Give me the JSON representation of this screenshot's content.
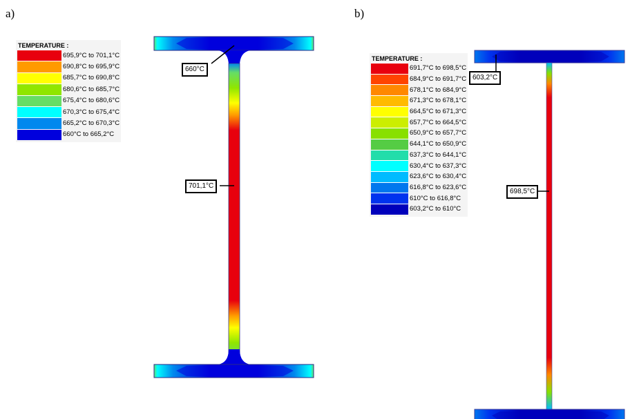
{
  "panels": [
    {
      "label": "a)",
      "legend": {
        "title": "TEMPERATURE :",
        "items": [
          {
            "text": "695,9°C to 701,1°C",
            "color": "#e8000e"
          },
          {
            "text": "690,8°C to 695,9°C",
            "color": "#ff9a00"
          },
          {
            "text": "685,7°C to 690,8°C",
            "color": "#ffff00"
          },
          {
            "text": "680,6°C to 685,7°C",
            "color": "#8fe600"
          },
          {
            "text": "675,4°C to 680,6°C",
            "color": "#66dd66"
          },
          {
            "text": "670,3°C to 675,4°C",
            "color": "#00ffff"
          },
          {
            "text": "665,2°C to 670,3°C",
            "color": "#0088ee"
          },
          {
            "text": "660°C to 665,2°C",
            "color": "#0000dd"
          }
        ]
      },
      "callouts": [
        {
          "text": "660°C"
        },
        {
          "text": "701,1°C"
        }
      ]
    },
    {
      "label": "b)",
      "legend": {
        "title": "TEMPERATURE :",
        "items": [
          {
            "text": "691,7°C to 698,5°C",
            "color": "#e8000e"
          },
          {
            "text": "684,9°C to 691,7°C",
            "color": "#ff4400"
          },
          {
            "text": "678,1°C to 684,9°C",
            "color": "#ff8800"
          },
          {
            "text": "671,3°C to 678,1°C",
            "color": "#ffbb00"
          },
          {
            "text": "664,5°C to 671,3°C",
            "color": "#ffff00"
          },
          {
            "text": "657,7°C to 664,5°C",
            "color": "#ccee00"
          },
          {
            "text": "650,9°C to 657,7°C",
            "color": "#88e000"
          },
          {
            "text": "644,1°C to 650,9°C",
            "color": "#55cc44"
          },
          {
            "text": "637,3°C to 644,1°C",
            "color": "#22ddaa"
          },
          {
            "text": "630,4°C to 637,3°C",
            "color": "#00ffff"
          },
          {
            "text": "623,6°C to 630,4°C",
            "color": "#00bbff"
          },
          {
            "text": "616,8°C to 623,6°C",
            "color": "#0077ee"
          },
          {
            "text": "610°C to 616,8°C",
            "color": "#0033ee"
          },
          {
            "text": "603,2°C to 610°C",
            "color": "#0000bb"
          }
        ]
      },
      "callouts": [
        {
          "text": "603,2°C"
        },
        {
          "text": "698,5°C"
        }
      ]
    }
  ]
}
